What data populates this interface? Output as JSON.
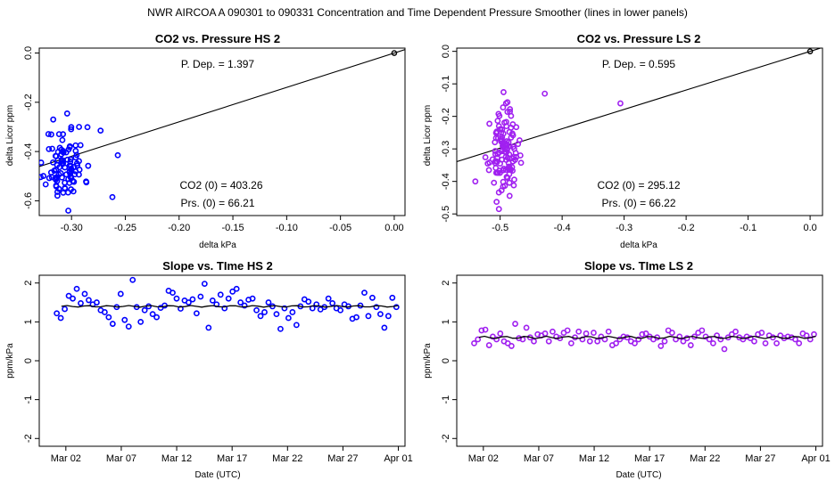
{
  "suptitle": "NWR   AIRCOA A   090301 to 090331   Concentration and Time Dependent Pressure Smoother (lines in lower panels)",
  "chart_data": [
    {
      "id": "hs-pressure",
      "type": "scatter",
      "title": "CO2 vs. Pressure HS 2",
      "xlabel": "delta kPa",
      "ylabel": "delta Licor ppm",
      "xlim": [
        -0.33,
        0.01
      ],
      "ylim": [
        -0.66,
        0.02
      ],
      "xticks": [
        -0.3,
        -0.25,
        -0.2,
        -0.15,
        -0.1,
        -0.05,
        0.0
      ],
      "xtick_labels": [
        "-0.30",
        "-0.25",
        "-0.20",
        "-0.15",
        "-0.10",
        "-0.05",
        "0.00"
      ],
      "yticks": [
        0.0,
        -0.2,
        -0.4,
        -0.6
      ],
      "ytick_labels": [
        "0.0",
        "-0.2",
        "-0.4",
        "-0.6"
      ],
      "color": "#0000ff",
      "reference_point": [
        0.0,
        0.0
      ],
      "fit_line": {
        "slope": 1.397,
        "intercept": 0.0
      },
      "cluster": {
        "x_center": -0.306,
        "x_spread": 0.009,
        "y_center": -0.45,
        "y_spread": 0.075,
        "n": 95,
        "seed": 11
      },
      "points": [
        [
          -0.262,
          -0.585
        ],
        [
          -0.257,
          -0.415
        ],
        [
          -0.273,
          -0.315
        ],
        [
          -0.293,
          -0.3
        ],
        [
          -0.303,
          -0.64
        ],
        [
          -0.317,
          -0.27
        ],
        [
          -0.321,
          -0.39
        ]
      ],
      "annotations": {
        "p_dep": "P. Dep. =  1.397",
        "co2_0": "CO2 (0) =  403.26",
        "prs_0": "Prs. (0) =  66.21"
      }
    },
    {
      "id": "ls-pressure",
      "type": "scatter",
      "title": "CO2 vs. Pressure LS 2",
      "xlabel": "delta kPa",
      "ylabel": "delta Licor ppm",
      "xlim": [
        -0.57,
        0.02
      ],
      "ylim": [
        -0.505,
        0.01
      ],
      "xticks": [
        -0.5,
        -0.4,
        -0.3,
        -0.2,
        -0.1,
        0.0
      ],
      "xtick_labels": [
        "-0.5",
        "-0.4",
        "-0.3",
        "-0.2",
        "-0.1",
        "0.0"
      ],
      "yticks": [
        0.0,
        -0.1,
        -0.2,
        -0.3,
        -0.4,
        -0.5
      ],
      "ytick_labels": [
        "0.0",
        "-0.1",
        "-0.2",
        "-0.3",
        "-0.4",
        "-0.5"
      ],
      "color": "#a020f0",
      "reference_point": [
        0.0,
        0.0
      ],
      "fit_line": {
        "slope": 0.595,
        "intercept": 0.0
      },
      "cluster": {
        "x_center": -0.494,
        "x_spread": 0.011,
        "y_center": -0.31,
        "y_spread": 0.06,
        "n": 120,
        "seed": 23
      },
      "points": [
        [
          -0.428,
          -0.13
        ],
        [
          -0.306,
          -0.16
        ],
        [
          -0.502,
          -0.485
        ],
        [
          -0.54,
          -0.4
        ],
        [
          -0.52,
          -0.345
        ]
      ],
      "annotations": {
        "p_dep": "P. Dep. =  0.595",
        "co2_0": "CO2 (0) =  295.12",
        "prs_0": "Prs. (0) =  66.22"
      }
    },
    {
      "id": "hs-slope",
      "type": "scatter",
      "title": "Slope vs. TIme HS 2",
      "xlabel": "Date (UTC)",
      "ylabel": "ppm/kPa",
      "xlim": [
        -1.4,
        31.6
      ],
      "ylim": [
        -2.2,
        2.2
      ],
      "xticks": [
        1,
        6,
        11,
        16,
        21,
        26,
        31
      ],
      "xtick_labels": [
        "Mar 02",
        "Mar 07",
        "Mar 12",
        "Mar 17",
        "Mar 22",
        "Mar 27",
        "Apr 01"
      ],
      "yticks": [
        2,
        1,
        0,
        -1,
        -2
      ],
      "ytick_labels": [
        "2",
        "1",
        "0",
        "-1",
        "-2"
      ],
      "color": "#0000ff",
      "smoother": {
        "level": 1.4,
        "from": 0.6,
        "to": 31.0,
        "wiggle": 0.02
      },
      "values": [
        1.22,
        1.1,
        1.33,
        1.67,
        1.6,
        1.85,
        1.48,
        1.72,
        1.56,
        1.45,
        1.5,
        1.3,
        1.25,
        1.12,
        0.95,
        1.38,
        1.72,
        1.05,
        0.88,
        2.08,
        1.38,
        1.0,
        1.3,
        1.4,
        1.2,
        1.12,
        1.36,
        1.42,
        1.8,
        1.75,
        1.6,
        1.34,
        1.55,
        1.5,
        1.58,
        1.22,
        1.65,
        1.98,
        0.85,
        1.55,
        1.45,
        1.7,
        1.35,
        1.6,
        1.78,
        1.85,
        1.5,
        1.42,
        1.57,
        1.6,
        1.3,
        1.15,
        1.25,
        1.5,
        1.4,
        1.2,
        0.82,
        1.35,
        1.1,
        1.25,
        0.92,
        1.4,
        1.58,
        1.52,
        1.35,
        1.45,
        1.32,
        1.38,
        1.6,
        1.48,
        1.35,
        1.3,
        1.45,
        1.4,
        1.08,
        1.12,
        1.42,
        1.75,
        1.15,
        1.62,
        1.38,
        1.2,
        0.85,
        1.15,
        1.62,
        1.38
      ]
    },
    {
      "id": "ls-slope",
      "type": "scatter",
      "title": "Slope vs. TIme LS 2",
      "xlabel": "Date (UTC)",
      "ylabel": "ppm/kPa",
      "xlim": [
        -1.4,
        31.6
      ],
      "ylim": [
        -2.2,
        2.2
      ],
      "xticks": [
        1,
        6,
        11,
        16,
        21,
        26,
        31
      ],
      "xtick_labels": [
        "Mar 02",
        "Mar 07",
        "Mar 12",
        "Mar 17",
        "Mar 22",
        "Mar 27",
        "Apr 01"
      ],
      "yticks": [
        2,
        1,
        0,
        -1,
        -2
      ],
      "ytick_labels": [
        "2",
        "1",
        "0",
        "-1",
        "-2"
      ],
      "color": "#a020f0",
      "smoother": {
        "level": 0.6,
        "from": 0.6,
        "to": 31.0,
        "wiggle": 0.03
      },
      "values": [
        0.45,
        0.55,
        0.78,
        0.8,
        0.4,
        0.62,
        0.55,
        0.7,
        0.5,
        0.45,
        0.38,
        0.95,
        0.58,
        0.55,
        0.85,
        0.6,
        0.5,
        0.68,
        0.65,
        0.7,
        0.5,
        0.75,
        0.62,
        0.58,
        0.72,
        0.78,
        0.45,
        0.6,
        0.75,
        0.55,
        0.7,
        0.5,
        0.72,
        0.5,
        0.62,
        0.55,
        0.75,
        0.4,
        0.45,
        0.55,
        0.62,
        0.6,
        0.5,
        0.45,
        0.55,
        0.68,
        0.7,
        0.62,
        0.55,
        0.6,
        0.38,
        0.5,
        0.78,
        0.72,
        0.55,
        0.62,
        0.5,
        0.58,
        0.4,
        0.62,
        0.72,
        0.78,
        0.62,
        0.55,
        0.45,
        0.65,
        0.55,
        0.3,
        0.6,
        0.68,
        0.75,
        0.6,
        0.55,
        0.62,
        0.58,
        0.5,
        0.68,
        0.72,
        0.45,
        0.65,
        0.6,
        0.45,
        0.65,
        0.58,
        0.62,
        0.6,
        0.55,
        0.45,
        0.7,
        0.65,
        0.55,
        0.68
      ]
    }
  ]
}
